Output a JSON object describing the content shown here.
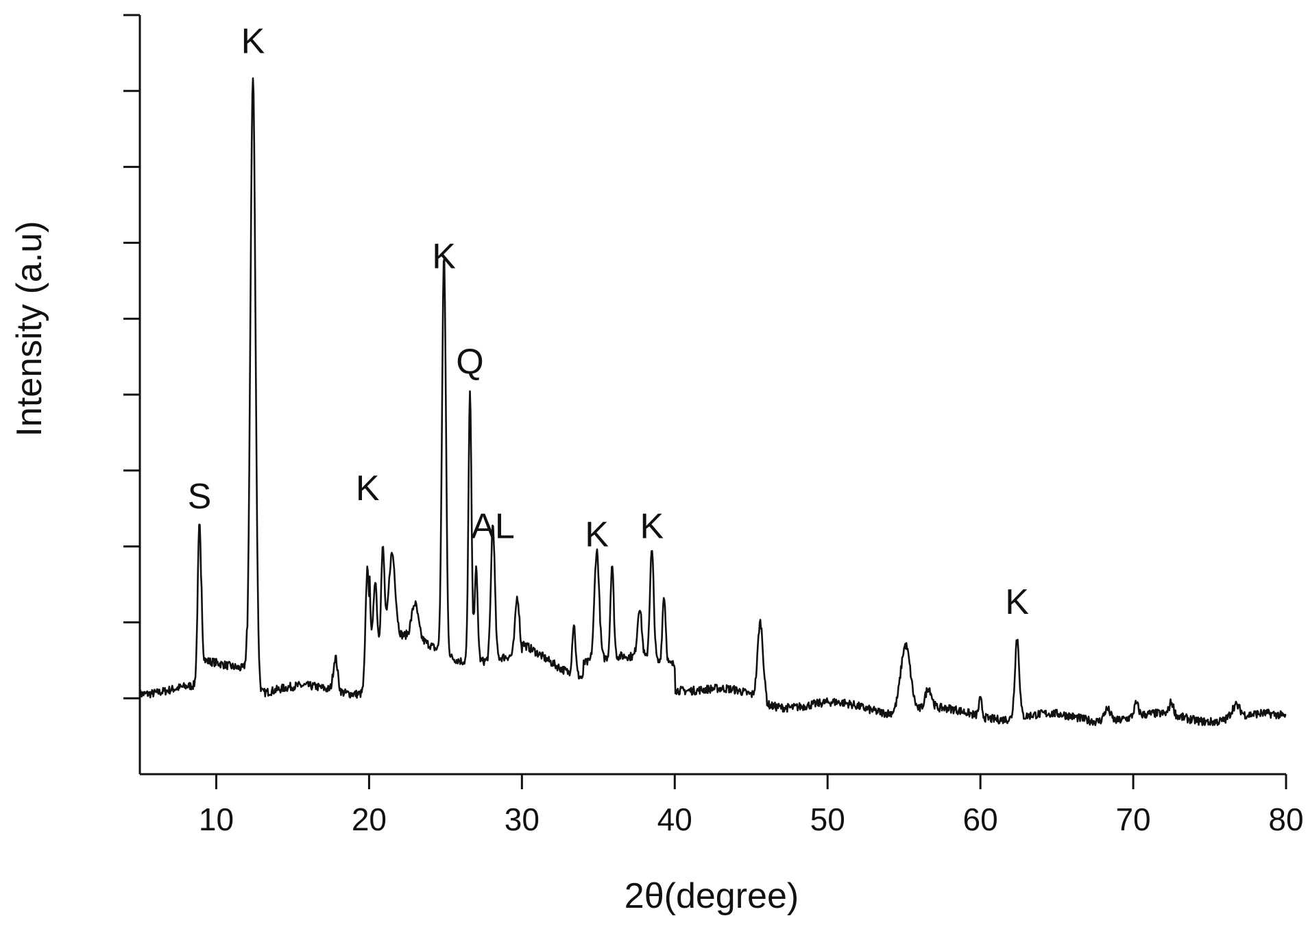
{
  "chart_data": {
    "type": "line",
    "xlabel": "2θ(degree)",
    "ylabel": "Intensity (a.u)",
    "title": "",
    "xlim": [
      5,
      80
    ],
    "ylim": [
      -1,
      8
    ],
    "grid": false,
    "legend": "none",
    "x_ticks": [
      10,
      20,
      30,
      40,
      50,
      60,
      70,
      80
    ],
    "y_tick_count": 10,
    "line_color": "#111111",
    "series": [
      {
        "peaks": [
          {
            "x": 8.9,
            "y": 1.9,
            "w": 0.16
          },
          {
            "x": 12.4,
            "y": 7.3,
            "w": 0.24
          },
          {
            "x": 17.8,
            "y": 0.4,
            "w": 0.2
          },
          {
            "x": 19.9,
            "y": 1.5,
            "w": 0.18
          },
          {
            "x": 20.4,
            "y": 0.8,
            "w": 0.15
          },
          {
            "x": 20.9,
            "y": 1.1,
            "w": 0.15
          },
          {
            "x": 21.5,
            "y": 1.0,
            "w": 0.3
          },
          {
            "x": 23.0,
            "y": 0.4,
            "w": 0.3
          },
          {
            "x": 24.9,
            "y": 4.7,
            "w": 0.18
          },
          {
            "x": 26.6,
            "y": 3.2,
            "w": 0.14
          },
          {
            "x": 27.0,
            "y": 1.1,
            "w": 0.15
          },
          {
            "x": 28.1,
            "y": 1.6,
            "w": 0.18
          },
          {
            "x": 29.7,
            "y": 0.7,
            "w": 0.2
          },
          {
            "x": 33.4,
            "y": 0.6,
            "w": 0.15
          },
          {
            "x": 34.9,
            "y": 1.3,
            "w": 0.22
          },
          {
            "x": 35.9,
            "y": 1.1,
            "w": 0.15
          },
          {
            "x": 37.7,
            "y": 0.6,
            "w": 0.2
          },
          {
            "x": 38.5,
            "y": 1.3,
            "w": 0.18
          },
          {
            "x": 39.3,
            "y": 0.8,
            "w": 0.15
          },
          {
            "x": 45.6,
            "y": 0.9,
            "w": 0.25
          },
          {
            "x": 55.1,
            "y": 0.8,
            "w": 0.45
          },
          {
            "x": 56.6,
            "y": 0.25,
            "w": 0.3
          },
          {
            "x": 60.0,
            "y": 0.2,
            "w": 0.15
          },
          {
            "x": 62.4,
            "y": 0.95,
            "w": 0.2
          },
          {
            "x": 68.3,
            "y": 0.15,
            "w": 0.3
          },
          {
            "x": 70.2,
            "y": 0.15,
            "w": 0.2
          },
          {
            "x": 72.5,
            "y": 0.15,
            "w": 0.2
          },
          {
            "x": 76.7,
            "y": 0.15,
            "w": 0.4
          }
        ]
      }
    ],
    "annotations": [
      {
        "text": "S",
        "x": 8.9,
        "y": 2.15
      },
      {
        "text": "K",
        "x": 12.4,
        "y": 7.55
      },
      {
        "text": "K",
        "x": 19.9,
        "y": 2.25
      },
      {
        "text": "K",
        "x": 24.9,
        "y": 5.0
      },
      {
        "text": "Q",
        "x": 26.6,
        "y": 3.75
      },
      {
        "text": "AL",
        "x": 28.1,
        "y": 1.8
      },
      {
        "text": "K",
        "x": 34.9,
        "y": 1.7
      },
      {
        "text": "K",
        "x": 38.5,
        "y": 1.8
      },
      {
        "text": "K",
        "x": 62.4,
        "y": 0.9
      }
    ]
  }
}
